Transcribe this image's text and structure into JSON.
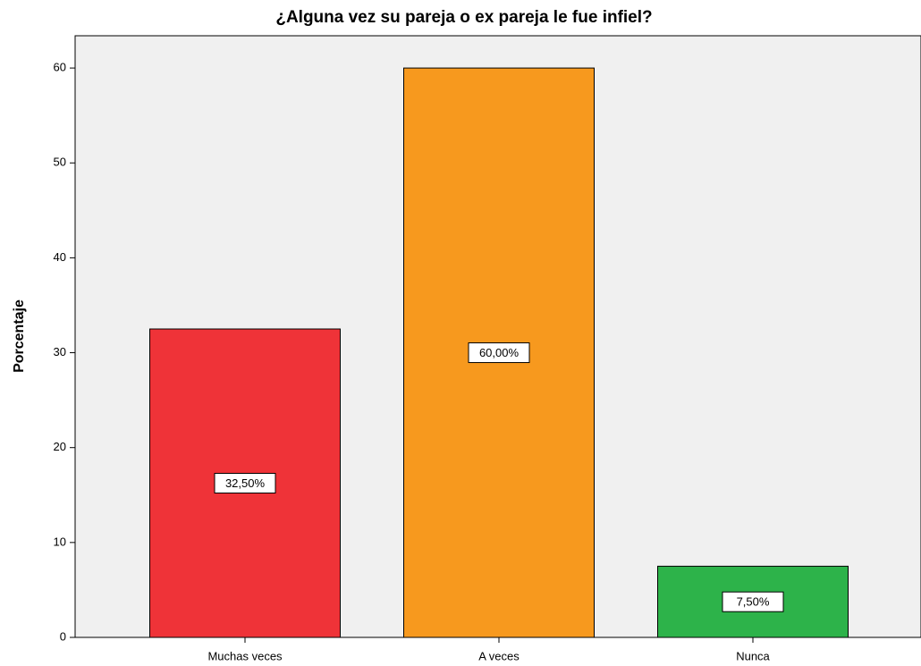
{
  "chart_data": {
    "type": "bar",
    "title": "¿Alguna vez su pareja o ex pareja le fue infiel?",
    "y_label": "Porcentaje",
    "categories": [
      "Muchas veces",
      "A veces",
      "Nunca"
    ],
    "values": [
      32.5,
      60,
      7.5
    ],
    "value_labels": [
      "32,50%",
      "60,00%",
      "7,50%"
    ],
    "colors": [
      "#ef3338",
      "#f7991e",
      "#2db34a"
    ],
    "ylim": [
      0,
      63.4
    ],
    "yticks": [
      0,
      10,
      20,
      30,
      40,
      50,
      60
    ],
    "grid": false
  }
}
